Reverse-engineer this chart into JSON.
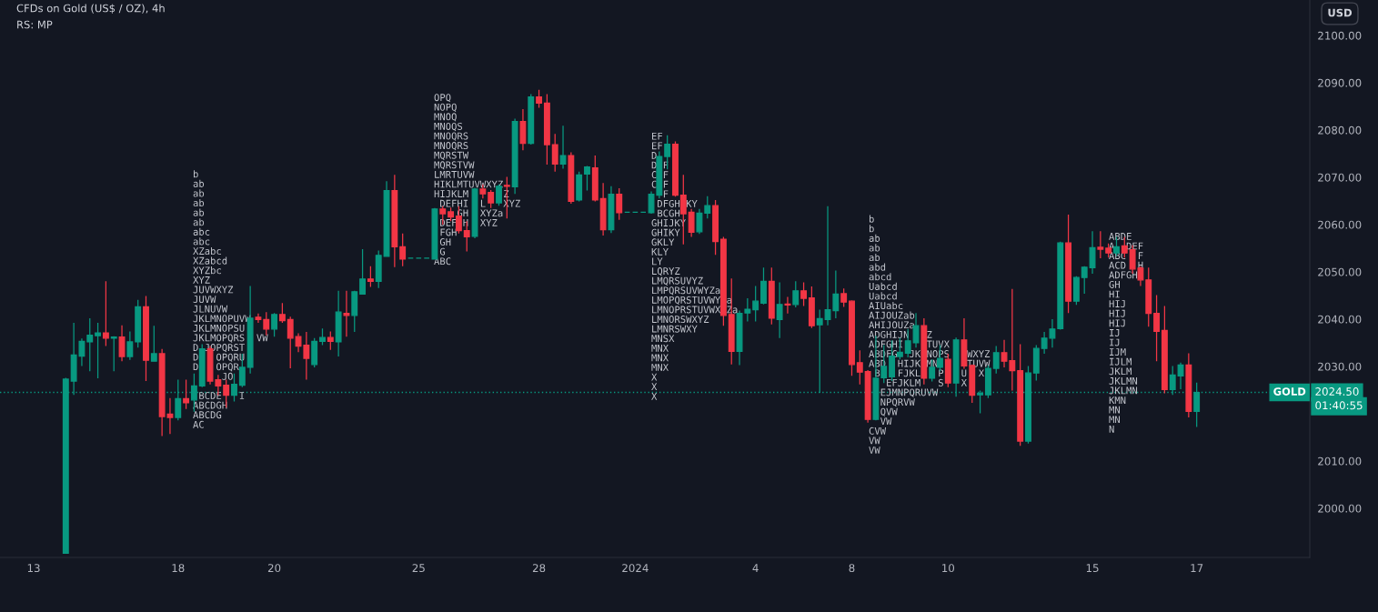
{
  "chart_data": {
    "type": "candlestick",
    "title": "CFDs on Gold (US$ / OZ), 4h",
    "subtitle": "RS: MP",
    "categories": [
      "13",
      null,
      null,
      null,
      null,
      null,
      null,
      null,
      null,
      null,
      null,
      null,
      null,
      null,
      null,
      null,
      null,
      null,
      "18",
      null,
      null,
      null,
      null,
      null,
      null,
      null,
      null,
      null,
      null,
      null,
      "20",
      null,
      null,
      null,
      null,
      null,
      null,
      null,
      null,
      null,
      null,
      null,
      null,
      null,
      null,
      null,
      null,
      null,
      "25",
      null,
      null,
      null,
      null,
      null,
      null,
      null,
      null,
      null,
      null,
      null,
      null,
      null,
      null,
      "28",
      null,
      null,
      null,
      null,
      null,
      null,
      null,
      null,
      null,
      null,
      null,
      "2024",
      null,
      null,
      null,
      null,
      null,
      null,
      null,
      null,
      null,
      null,
      null,
      null,
      null,
      null,
      "4",
      null,
      null,
      null,
      null,
      null,
      null,
      null,
      null,
      null,
      null,
      null,
      "8",
      null,
      null,
      null,
      null,
      null,
      null,
      null,
      null,
      null,
      null,
      null,
      "10",
      null,
      null,
      null,
      null,
      null,
      null,
      null,
      null,
      null,
      null,
      null,
      null,
      null,
      null,
      null,
      null,
      null,
      "15",
      null,
      null,
      null,
      null,
      null,
      null,
      null,
      null,
      null,
      null,
      null,
      null,
      "17",
      null,
      null,
      null,
      null,
      null,
      null,
      null,
      null,
      null,
      null,
      null,
      null,
      null,
      null
    ],
    "ohlc": [
      null,
      null,
      null,
      null,
      [
        1990.5,
        2027.6,
        1990.4,
        2027.3
      ],
      [
        2026.9,
        2039.2,
        2024.0,
        2032.4
      ],
      [
        2032.2,
        2035.9,
        2030.1,
        2035.3
      ],
      [
        2035.2,
        2040.2,
        2029.0,
        2036.6
      ],
      [
        2036.5,
        2039.2,
        2027.5,
        2037.1
      ],
      [
        2037.1,
        2048.0,
        2034.3,
        2036.0
      ],
      [
        2036.0,
        2036.4,
        2029.0,
        2036.2
      ],
      [
        2036.2,
        2038.7,
        2031.1,
        2032.1
      ],
      [
        2032.1,
        2037.4,
        2031.4,
        2035.2
      ],
      [
        2035.2,
        2044.1,
        2034.0,
        2042.6
      ],
      [
        2042.6,
        2044.9,
        2026.9,
        2031.3
      ],
      [
        2031.1,
        2038.6,
        2031.0,
        2032.7
      ],
      [
        2032.7,
        2033.7,
        2015.3,
        2019.4
      ],
      [
        2019.9,
        2023.3,
        2015.7,
        2019.2
      ],
      [
        2019.2,
        2027.2,
        2018.6,
        2023.2
      ],
      [
        2023.2,
        2027.2,
        2021.0,
        2022.3
      ],
      [
        2022.9,
        2028.5,
        2020.4,
        2025.9
      ],
      [
        2025.9,
        2034.7,
        2025.6,
        2033.7
      ],
      [
        2033.7,
        2034.3,
        2026.2,
        2026.9
      ],
      [
        2027.2,
        2028.2,
        2023.9,
        2025.9
      ],
      [
        2026.0,
        2027.2,
        2021.3,
        2023.9
      ],
      [
        2023.9,
        2028.5,
        2022.6,
        2026.2
      ],
      [
        2026.0,
        2032.7,
        2025.6,
        2029.8
      ],
      [
        2029.8,
        2047.0,
        2028.5,
        2040.2
      ],
      [
        2040.4,
        2041.2,
        2039.2,
        2039.9
      ],
      [
        2039.9,
        2041.5,
        2036.6,
        2037.9
      ],
      [
        2037.9,
        2041.3,
        2036.3,
        2041.0
      ],
      [
        2041.0,
        2043.4,
        2039.2,
        2039.7
      ],
      [
        2039.9,
        2040.5,
        2029.6,
        2036.0
      ],
      [
        2036.3,
        2037.0,
        2033.0,
        2034.3
      ],
      [
        2034.5,
        2037.3,
        2027.2,
        2031.7
      ],
      [
        2030.4,
        2036.0,
        2029.8,
        2035.3
      ],
      [
        2035.3,
        2038.0,
        2034.5,
        2036.1
      ],
      [
        2036.1,
        2037.4,
        2033.5,
        2035.3
      ],
      [
        2035.2,
        2046.0,
        2032.1,
        2041.5
      ],
      [
        2041.2,
        2046.0,
        2036.3,
        2040.8
      ],
      [
        2040.8,
        2046.0,
        2037.3,
        2045.8
      ],
      [
        2045.3,
        2054.8,
        2045.3,
        2048.5
      ],
      [
        2048.5,
        2051.2,
        2046.8,
        2048.0
      ],
      [
        2048.0,
        2054.5,
        2046.6,
        2053.5
      ],
      [
        2053.3,
        2069.2,
        2053.2,
        2067.2
      ],
      [
        2067.2,
        2070.5,
        2051.0,
        2055.3
      ],
      [
        2055.3,
        2058.1,
        2051.2,
        2052.7
      ],
      [
        2052.9,
        2052.9,
        2052.9,
        2052.9
      ],
      [
        2052.9,
        2052.9,
        2052.9,
        2052.9
      ],
      [
        2052.9,
        2052.9,
        2052.9,
        2052.9
      ],
      [
        2052.7,
        2063.5,
        2052.7,
        2063.3
      ],
      [
        2063.3,
        2063.9,
        2060.0,
        2062.3
      ],
      [
        2062.7,
        2063.6,
        2060.7,
        2061.6
      ],
      [
        2061.8,
        2063.9,
        2058.1,
        2058.7
      ],
      [
        2058.7,
        2060.7,
        2054.3,
        2057.4
      ],
      [
        2057.5,
        2067.8,
        2057.1,
        2067.5
      ],
      [
        2067.5,
        2068.5,
        2065.5,
        2066.5
      ],
      [
        2066.8,
        2067.3,
        2063.5,
        2064.6
      ],
      [
        2064.6,
        2068.5,
        2064.0,
        2068.1
      ],
      [
        2068.3,
        2070.1,
        2061.3,
        2068.1
      ],
      [
        2068.0,
        2082.4,
        2066.5,
        2081.8
      ],
      [
        2081.8,
        2084.4,
        2075.7,
        2077.2
      ],
      [
        2077.2,
        2087.6,
        2076.9,
        2087.0
      ],
      [
        2087.0,
        2088.5,
        2084.7,
        2085.7
      ],
      [
        2085.7,
        2087.6,
        2072.7,
        2076.9
      ],
      [
        2076.9,
        2079.2,
        2071.2,
        2072.8
      ],
      [
        2072.8,
        2080.9,
        2071.8,
        2074.6
      ],
      [
        2074.6,
        2075.3,
        2064.4,
        2064.9
      ],
      [
        2065.2,
        2071.2,
        2064.9,
        2070.5
      ],
      [
        2070.7,
        2072.4,
        2067.2,
        2072.2
      ],
      [
        2072.0,
        2074.6,
        2064.9,
        2065.2
      ],
      [
        2065.5,
        2068.8,
        2057.7,
        2058.9
      ],
      [
        2058.9,
        2068.1,
        2058.2,
        2066.4
      ],
      [
        2066.4,
        2067.7,
        2061.0,
        2062.5
      ],
      [
        2062.6,
        2062.6,
        2062.6,
        2062.6
      ],
      [
        2062.6,
        2062.6,
        2062.6,
        2062.6
      ],
      [
        2062.6,
        2062.6,
        2062.6,
        2062.6
      ],
      [
        2062.5,
        2067.0,
        2062.3,
        2066.4
      ],
      [
        2066.2,
        2075.5,
        2065.5,
        2074.4
      ],
      [
        2074.4,
        2078.9,
        2071.7,
        2077.0
      ],
      [
        2077.0,
        2077.6,
        2065.9,
        2066.2
      ],
      [
        2066.2,
        2070.5,
        2055.8,
        2062.3
      ],
      [
        2062.6,
        2063.3,
        2057.4,
        2058.4
      ],
      [
        2058.5,
        2063.3,
        2058.0,
        2062.4
      ],
      [
        2062.4,
        2066.0,
        2061.3,
        2064.0
      ],
      [
        2064.0,
        2065.2,
        2053.6,
        2056.4
      ],
      [
        2056.9,
        2057.4,
        2038.6,
        2040.8
      ],
      [
        2041.0,
        2048.6,
        2030.4,
        2033.2
      ],
      [
        2033.2,
        2041.8,
        2030.3,
        2041.2
      ],
      [
        2041.3,
        2044.4,
        2039.5,
        2042.1
      ],
      [
        2042.0,
        2047.0,
        2039.5,
        2043.8
      ],
      [
        2043.4,
        2050.9,
        2043.1,
        2048.0
      ],
      [
        2048.0,
        2050.9,
        2038.9,
        2040.2
      ],
      [
        2039.9,
        2047.8,
        2036.0,
        2043.1
      ],
      [
        2043.2,
        2044.7,
        2041.2,
        2043.0
      ],
      [
        2043.1,
        2048.0,
        2042.5,
        2046.0
      ],
      [
        2046.0,
        2047.8,
        2042.8,
        2044.4
      ],
      [
        2044.5,
        2046.9,
        2038.1,
        2038.6
      ],
      [
        2038.8,
        2042.0,
        2024.4,
        2040.1
      ],
      [
        2039.9,
        2063.9,
        2038.7,
        2042.0
      ],
      [
        2041.8,
        2050.3,
        2040.2,
        2045.3
      ],
      [
        2045.4,
        2046.5,
        2042.6,
        2043.6
      ],
      [
        2043.8,
        2044.0,
        2028.0,
        2030.4
      ],
      [
        2030.8,
        2033.4,
        2026.2,
        2028.8
      ],
      [
        2028.9,
        2029.2,
        2018.1,
        2018.8
      ],
      [
        2018.8,
        2036.5,
        2018.6,
        2027.5
      ],
      [
        2027.6,
        2034.5,
        2026.5,
        2030.0
      ],
      [
        2027.8,
        2035.5,
        2026.9,
        2032.2
      ],
      [
        2032.1,
        2036.0,
        2031.5,
        2033.0
      ],
      [
        2032.8,
        2037.9,
        2031.9,
        2035.4
      ],
      [
        2035.0,
        2041.3,
        2034.0,
        2038.6
      ],
      [
        2038.6,
        2040.2,
        2026.2,
        2027.5
      ],
      [
        2027.5,
        2031.5,
        2026.8,
        2029.8
      ],
      [
        2029.8,
        2034.5,
        2029.0,
        2031.7
      ],
      [
        2031.5,
        2032.7,
        2025.6,
        2026.5
      ],
      [
        2026.5,
        2036.1,
        2023.6,
        2035.6
      ],
      [
        2035.6,
        2040.2,
        2029.5,
        2030.1
      ],
      [
        2030.2,
        2030.4,
        2022.3,
        2023.9
      ],
      [
        2024.0,
        2024.9,
        2020.1,
        2024.3
      ],
      [
        2024.0,
        2030.2,
        2023.3,
        2029.6
      ],
      [
        2029.6,
        2034.3,
        2028.5,
        2032.9
      ],
      [
        2032.9,
        2035.6,
        2029.8,
        2031.1
      ],
      [
        2031.2,
        2046.4,
        2024.9,
        2029.1
      ],
      [
        2029.1,
        2034.7,
        2013.2,
        2014.2
      ],
      [
        2014.2,
        2030.1,
        2013.7,
        2028.6
      ],
      [
        2028.6,
        2034.5,
        2027.0,
        2033.8
      ],
      [
        2033.8,
        2037.3,
        2032.7,
        2036.0
      ],
      [
        2036.0,
        2040.0,
        2034.0,
        2037.9
      ],
      [
        2038.0,
        2056.4,
        2037.8,
        2056.1
      ],
      [
        2056.1,
        2062.1,
        2041.3,
        2043.8
      ],
      [
        2043.8,
        2049.1,
        2043.0,
        2048.8
      ],
      [
        2048.8,
        2051.2,
        2045.4,
        2051.0
      ],
      [
        2050.9,
        2058.6,
        2049.6,
        2055.1
      ],
      [
        2055.2,
        2058.6,
        2052.9,
        2054.8
      ],
      [
        2055.0,
        2056.0,
        2053.0,
        2054.0
      ],
      [
        2054.0,
        2057.4,
        2053.4,
        2055.3
      ],
      [
        2055.5,
        2057.4,
        2053.0,
        2054.0
      ],
      [
        2054.7,
        2055.6,
        2049.6,
        2050.6
      ],
      [
        2050.8,
        2051.2,
        2047.0,
        2048.3
      ],
      [
        2048.3,
        2050.9,
        2038.4,
        2041.2
      ],
      [
        2041.2,
        2045.1,
        2031.1,
        2037.4
      ],
      [
        2037.6,
        2042.8,
        2024.3,
        2025.1
      ],
      [
        2025.1,
        2030.1,
        2024.0,
        2028.2
      ],
      [
        2028.0,
        2030.8,
        2025.2,
        2030.3
      ],
      [
        2030.3,
        2032.8,
        2019.2,
        2020.5
      ],
      [
        2020.5,
        2026.6,
        2017.2,
        2024.5
      ],
      null,
      null,
      null,
      null,
      null,
      null,
      null,
      null,
      null,
      null,
      null,
      null,
      null,
      null
    ],
    "colors": [
      null,
      null,
      null,
      null,
      "#089981",
      "#089981",
      "#089981",
      "#089981",
      "#089981",
      "#f23645",
      "#089981",
      "#f23645",
      "#089981",
      "#089981",
      "#f23645",
      "#089981",
      "#f23645",
      "#f23645",
      "#089981",
      "#f23645",
      "#089981",
      "#089981",
      "#f23645",
      "#f23645",
      "#f23645",
      "#089981",
      "#089981",
      "#089981",
      "#f23645",
      "#f23645",
      "#089981",
      "#f23645",
      "#f23645",
      "#f23645",
      "#f23645",
      "#089981",
      "#089981",
      "#f23645",
      "#089981",
      "#f23645",
      "#089981",
      "#089981",
      "#f23645",
      "#089981",
      "#089981",
      "#f23645",
      "#f23645",
      "#089981",
      "#089981",
      "#089981",
      "#089981",
      "#f23645",
      "#f23645",
      "#f23645",
      "#f23645",
      "#089981",
      "#f23645",
      "#f23645",
      "#089981",
      "#f23645",
      "#089981",
      "#f23645",
      "#089981",
      "#f23645",
      "#f23645",
      "#f23645",
      "#089981",
      "#f23645",
      "#089981",
      "#089981",
      "#f23645",
      "#f23645",
      "#089981",
      "#f23645",
      "#089981",
      "#089981",
      "#089981",
      "#089981",
      "#089981",
      "#089981",
      "#f23645",
      "#f23645",
      "#f23645",
      "#089981",
      "#089981",
      "#f23645",
      "#f23645",
      "#f23645",
      "#089981",
      "#089981",
      "#089981",
      "#089981",
      "#f23645",
      "#089981",
      "#f23645",
      "#089981",
      "#f23645",
      "#f23645",
      "#089981",
      "#089981",
      "#089981",
      "#f23645",
      "#f23645",
      "#f23645",
      "#f23645",
      "#089981",
      "#089981",
      "#089981",
      "#089981",
      "#089981",
      "#089981",
      "#f23645",
      "#089981",
      "#089981",
      "#f23645",
      "#089981",
      "#f23645",
      "#f23645",
      "#089981",
      "#089981",
      "#089981",
      "#f23645",
      "#f23645",
      "#f23645",
      "#089981",
      "#089981",
      "#089981",
      "#089981",
      "#089981",
      "#f23645",
      "#089981",
      "#089981",
      "#089981",
      "#f23645",
      "#f23645",
      "#089981",
      "#f23645",
      "#f23645",
      "#f23645",
      "#f23645",
      "#f23645",
      "#f23645",
      "#089981",
      "#089981",
      "#f23645",
      "#089981",
      null,
      null,
      null,
      null,
      null,
      null,
      null,
      null,
      null,
      null,
      null,
      null,
      null,
      null
    ],
    "ylim": [
      1989.6,
      2107.5
    ],
    "yticks": [
      {
        "value": 2000,
        "label": "2000.00"
      },
      {
        "value": 2010,
        "label": "2010.00"
      },
      {
        "value": 2030,
        "label": "2030.00"
      },
      {
        "value": 2040,
        "label": "2040.00"
      },
      {
        "value": 2050,
        "label": "2050.00"
      },
      {
        "value": 2060,
        "label": "2060.00"
      },
      {
        "value": 2070,
        "label": "2070.00"
      },
      {
        "value": 2080,
        "label": "2080.00"
      },
      {
        "value": 2090,
        "label": "2090.00"
      },
      {
        "value": 2100,
        "label": "2100.00"
      }
    ],
    "ref_lines": [
      {
        "axis": "y",
        "value": 2024.5,
        "label": "2024.50",
        "color": "#089981",
        "line_style": "dotted"
      }
    ],
    "annotations": [
      "USD",
      {
        "text": "GOLD",
        "y": 2024.5
      },
      "01:40:55",
      "b\nab\nab\nab\nab\nab\nabc\nabc\nXZabc\nXZabcd\nXYZbc\nXYZ\nJUVWXYZ\nJUVW\nJLNUVW\nJKLMNOPUVW\nJKLMNOPSU\nJKLMOPQRS  VW\nD JOPQRST\nD   OPQRU\nD   OPQR\n     JO\n\n BCDE   I\nABCDGH\nABCDG\nAC",
      "OPQ\nNOPQ\nMNOQ\nMNOQS\nMNOQRS\nMNOQRS\nMQRSTW\nMQRSTVW\nLMRTUVW\nHIKLMTUVWXYZ\nHIJKLM      Z\n DEFHI  L   XYZ\n    GH  XYZa\n DEF H  XYZ\n FGH\n GH\n G\nABC",
      "EF\nEF\nD\nD F\nC F\nC F\n  F\n DFGH KY\n BCGH\nGHIJKY\nGHIKY\nGKLY\nKLY\nLY\nLQRYZ\nLMQRSUVYZ\nLMPQRSUVWYZa\nLMOPQRSTUVWY a\nLMNOPRSTUVWX Za\nLMNORSWXYZ\nLMNRSWXY\nMNSX\nMNX\nMNX\nMNX\nX\nX\nX",
      "b\nb\nab\nab\nab\nabd\nabcd\nUabcd\nUabcd\nAIUabc\nAIJOUZab\nAHIJOUZa\nADGHIJN   Z\nADFGHI    TUVX\nABDFG  JK NOPS   WXYZ\nABD  HIJK MN     TUVW\n B   FJKL   P   U  X\n   EFJKLM   S   X\n  EJMNPQRUVW\n  NPQRVW\n  QVW\n  VW\nCVW\nVW\nVW",
      "ABDE\nA  DEF\nABC  F\nACD  H\nADFGH\nGH\nHI\nHIJ\nHIJ\nHIJ\nIJ\nIJ\nIJM\nIJLM\nJKLM\nJKLMN\nJKLMN\nKMN\nMN\nMN\nN"
    ]
  }
}
